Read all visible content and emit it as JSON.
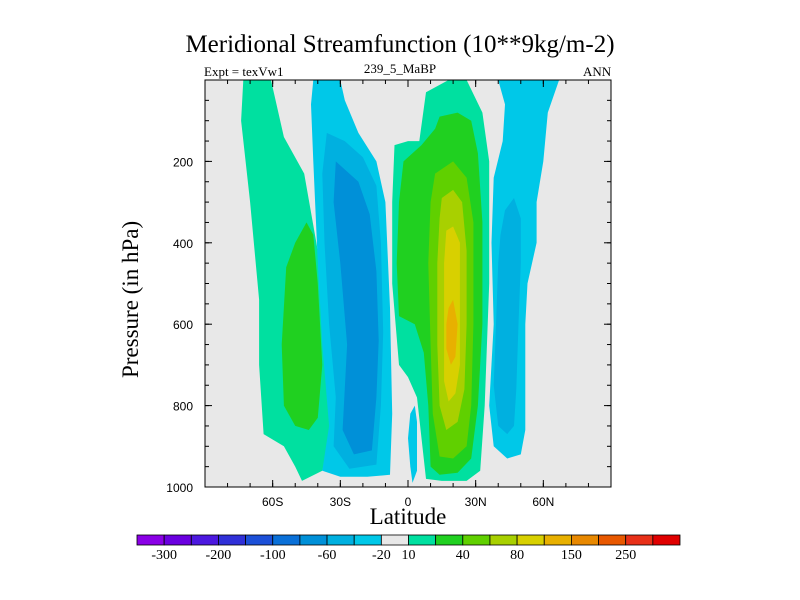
{
  "chart_data": {
    "type": "contour",
    "title": "Meridional Streamfunction (10**9kg/m-2)",
    "subtitle_left": "Expt = texVw1",
    "subtitle_center": "239_5_MaBP",
    "subtitle_right": "ANN",
    "xlabel": "Latitude",
    "ylabel": "Pressure (in hPa)",
    "xlim": [
      -90,
      90
    ],
    "ylim": [
      1000,
      0
    ],
    "x_ticks": [
      {
        "value": -60,
        "label": "60S"
      },
      {
        "value": -30,
        "label": "30S"
      },
      {
        "value": 0,
        "label": "0"
      },
      {
        "value": 30,
        "label": "30N"
      },
      {
        "value": 60,
        "label": "60N"
      }
    ],
    "y_ticks": [
      {
        "value": 200,
        "label": "200"
      },
      {
        "value": 400,
        "label": "400"
      },
      {
        "value": 600,
        "label": "600"
      },
      {
        "value": 800,
        "label": "800"
      },
      {
        "value": 1000,
        "label": "1000"
      }
    ],
    "colorbar": {
      "colors": [
        "#8a00e6",
        "#6a00e0",
        "#4c18e0",
        "#3030d8",
        "#1c50d8",
        "#0a70d8",
        "#0090d8",
        "#00b0e0",
        "#00c8e8",
        "#e8e8e8",
        "#00e0a0",
        "#20d020",
        "#60d000",
        "#a8d000",
        "#d8d000",
        "#e8b000",
        "#e88800",
        "#e85800",
        "#e83018",
        "#e00000"
      ],
      "labels": [
        {
          "after_index": 1,
          "text": "-300"
        },
        {
          "after_index": 3,
          "text": "-200"
        },
        {
          "after_index": 5,
          "text": "-100"
        },
        {
          "after_index": 7,
          "text": "-60"
        },
        {
          "after_index": 9,
          "text": "-20"
        },
        {
          "after_index": 10,
          "text": "10"
        },
        {
          "after_index": 12,
          "text": "40"
        },
        {
          "after_index": 14,
          "text": "80"
        },
        {
          "after_index": 16,
          "text": "150"
        },
        {
          "after_index": 18,
          "text": "250"
        }
      ]
    },
    "regions": [
      {
        "name": "sh-ferrel-outer",
        "level": "10 to 20",
        "color": "#00e0a0",
        "poly": [
          [
            -73,
            0
          ],
          [
            -65,
            0
          ],
          [
            -62,
            -30
          ],
          [
            -55,
            140
          ],
          [
            -46,
            230
          ],
          [
            -40,
            420
          ],
          [
            -35,
            700
          ],
          [
            -33,
            860
          ],
          [
            -38,
            960
          ],
          [
            -47,
            985
          ],
          [
            -50,
            950
          ],
          [
            -55,
            900
          ],
          [
            -64,
            870
          ],
          [
            -66,
            700
          ],
          [
            -66,
            540
          ],
          [
            -70,
            300
          ],
          [
            -74,
            100
          ]
        ]
      },
      {
        "name": "sh-ferrel-inner",
        "level": "20 to 40",
        "color": "#20d020",
        "poly": [
          [
            -54,
            460
          ],
          [
            -50,
            400
          ],
          [
            -45,
            350
          ],
          [
            -42,
            380
          ],
          [
            -40,
            500
          ],
          [
            -38,
            700
          ],
          [
            -40,
            830
          ],
          [
            -44,
            860
          ],
          [
            -50,
            850
          ],
          [
            -55,
            800
          ],
          [
            -56,
            650
          ]
        ]
      },
      {
        "name": "sh-hadley-outer",
        "level": "-20 to -10",
        "color": "#00c8e8",
        "poly": [
          [
            -42,
            0
          ],
          [
            -30,
            0
          ],
          [
            -28,
            50
          ],
          [
            -22,
            130
          ],
          [
            -14,
            200
          ],
          [
            -10,
            300
          ],
          [
            -8,
            560
          ],
          [
            -7,
            820
          ],
          [
            -8,
            970
          ],
          [
            -18,
            975
          ],
          [
            -30,
            975
          ],
          [
            -38,
            960
          ],
          [
            -35,
            850
          ],
          [
            -38,
            650
          ],
          [
            -40,
            450
          ],
          [
            -42,
            200
          ],
          [
            -43,
            60
          ]
        ]
      },
      {
        "name": "sh-hadley-inner",
        "level": "-40 to -20",
        "color": "#00b0e0",
        "poly": [
          [
            -36,
            130
          ],
          [
            -28,
            150
          ],
          [
            -20,
            190
          ],
          [
            -14,
            260
          ],
          [
            -12,
            400
          ],
          [
            -11,
            620
          ],
          [
            -12,
            800
          ],
          [
            -14,
            945
          ],
          [
            -26,
            955
          ],
          [
            -33,
            900
          ],
          [
            -32,
            780
          ],
          [
            -35,
            600
          ],
          [
            -37,
            400
          ],
          [
            -38,
            230
          ]
        ]
      },
      {
        "name": "sh-hadley-core",
        "level": "-60 to -40",
        "color": "#0090d8",
        "poly": [
          [
            -32,
            200
          ],
          [
            -22,
            250
          ],
          [
            -17,
            330
          ],
          [
            -14,
            470
          ],
          [
            -13,
            640
          ],
          [
            -14,
            780
          ],
          [
            -16,
            910
          ],
          [
            -24,
            920
          ],
          [
            -29,
            860
          ],
          [
            -27,
            650
          ],
          [
            -30,
            450
          ],
          [
            -33,
            300
          ]
        ]
      },
      {
        "name": "eq-small-blue",
        "level": "-20 to -10",
        "color": "#00c8e8",
        "poly": [
          [
            3,
            800
          ],
          [
            4,
            840
          ],
          [
            4,
            880
          ],
          [
            4,
            960
          ],
          [
            2,
            990
          ],
          [
            1,
            950
          ],
          [
            0,
            880
          ],
          [
            1,
            820
          ]
        ]
      },
      {
        "name": "nh-hadley-outer",
        "level": "10 to 20",
        "color": "#00e0a0",
        "poly": [
          [
            18,
            0
          ],
          [
            26,
            0
          ],
          [
            33,
            80
          ],
          [
            36,
            200
          ],
          [
            36,
            500
          ],
          [
            34,
            800
          ],
          [
            32,
            960
          ],
          [
            26,
            985
          ],
          [
            15,
            985
          ],
          [
            8,
            980
          ],
          [
            6,
            880
          ],
          [
            4,
            780
          ],
          [
            0,
            730
          ],
          [
            -4,
            700
          ],
          [
            -7,
            500
          ],
          [
            -7,
            300
          ],
          [
            -6,
            160
          ],
          [
            0,
            150
          ],
          [
            5,
            150
          ],
          [
            8,
            30
          ]
        ]
      },
      {
        "name": "nh-hadley-green",
        "level": "20 to 40",
        "color": "#20d020",
        "poly": [
          [
            14,
            90
          ],
          [
            22,
            80
          ],
          [
            28,
            100
          ],
          [
            31,
            180
          ],
          [
            33,
            350
          ],
          [
            33,
            600
          ],
          [
            31,
            800
          ],
          [
            28,
            930
          ],
          [
            22,
            965
          ],
          [
            14,
            970
          ],
          [
            10,
            950
          ],
          [
            9,
            800
          ],
          [
            7,
            670
          ],
          [
            3,
            600
          ],
          [
            -4,
            580
          ],
          [
            -5,
            450
          ],
          [
            -4,
            300
          ],
          [
            -2,
            200
          ],
          [
            6,
            160
          ],
          [
            12,
            120
          ]
        ]
      },
      {
        "name": "nh-hadley-lime",
        "level": "40 to 60",
        "color": "#60d000",
        "poly": [
          [
            12,
            230
          ],
          [
            20,
            200
          ],
          [
            26,
            240
          ],
          [
            29,
            350
          ],
          [
            29,
            600
          ],
          [
            28,
            800
          ],
          [
            26,
            900
          ],
          [
            20,
            930
          ],
          [
            14,
            925
          ],
          [
            11,
            820
          ],
          [
            10,
            650
          ],
          [
            9,
            450
          ],
          [
            10,
            300
          ]
        ]
      },
      {
        "name": "nh-hadley-yellowgreen",
        "level": "60 to 80",
        "color": "#a8d000",
        "poly": [
          [
            15,
            290
          ],
          [
            20,
            270
          ],
          [
            24,
            300
          ],
          [
            26,
            420
          ],
          [
            26,
            600
          ],
          [
            25,
            760
          ],
          [
            22,
            840
          ],
          [
            17,
            860
          ],
          [
            14,
            800
          ],
          [
            13,
            650
          ],
          [
            13,
            450
          ],
          [
            14,
            340
          ]
        ]
      },
      {
        "name": "nh-hadley-yellow",
        "level": "80 to 100",
        "color": "#d8d000",
        "poly": [
          [
            17,
            370
          ],
          [
            20,
            360
          ],
          [
            23,
            400
          ],
          [
            23,
            550
          ],
          [
            23,
            700
          ],
          [
            21,
            770
          ],
          [
            18,
            790
          ],
          [
            16,
            740
          ],
          [
            16,
            600
          ],
          [
            16,
            450
          ]
        ]
      },
      {
        "name": "nh-hadley-core",
        "level": "100 to 150",
        "color": "#e8b000",
        "poly": [
          [
            18,
            560
          ],
          [
            20,
            540
          ],
          [
            22,
            600
          ],
          [
            21,
            680
          ],
          [
            19,
            700
          ],
          [
            17,
            660
          ],
          [
            17,
            600
          ]
        ]
      },
      {
        "name": "nh-ferrel-outer",
        "level": "-20 to -10",
        "color": "#00c8e8",
        "poly": [
          [
            40,
            0
          ],
          [
            67,
            0
          ],
          [
            62,
            80
          ],
          [
            60,
            200
          ],
          [
            57,
            300
          ],
          [
            57,
            400
          ],
          [
            53,
            500
          ],
          [
            52,
            600
          ],
          [
            52,
            750
          ],
          [
            52,
            860
          ],
          [
            50,
            920
          ],
          [
            44,
            930
          ],
          [
            38,
            900
          ],
          [
            36,
            800
          ],
          [
            38,
            600
          ],
          [
            37,
            400
          ],
          [
            38,
            240
          ],
          [
            42,
            150
          ],
          [
            43,
            60
          ]
        ]
      },
      {
        "name": "nh-ferrel-inner",
        "level": "-40 to -20",
        "color": "#00b0e0",
        "poly": [
          [
            43,
            320
          ],
          [
            47,
            290
          ],
          [
            50,
            340
          ],
          [
            50,
            450
          ],
          [
            49,
            600
          ],
          [
            48,
            760
          ],
          [
            47,
            850
          ],
          [
            44,
            870
          ],
          [
            40,
            850
          ],
          [
            38,
            750
          ],
          [
            39,
            600
          ],
          [
            40,
            450
          ],
          [
            41,
            380
          ]
        ]
      }
    ]
  }
}
